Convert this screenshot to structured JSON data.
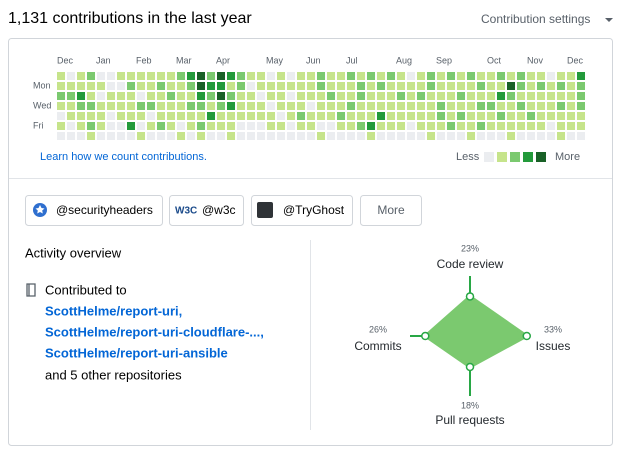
{
  "header": {
    "title": "1,131 contributions in the last year",
    "settings": "Contribution settings"
  },
  "contributions": {
    "months": [
      "Dec",
      "Jan",
      "Feb",
      "Mar",
      "Apr",
      "May",
      "Jun",
      "Jul",
      "Aug",
      "Sep",
      "Oct",
      "Nov",
      "Dec"
    ],
    "days": [
      "Mon",
      "Wed",
      "Fri"
    ],
    "level_colors": [
      "#ebedf0",
      "#c6e48b",
      "#7bc96f",
      "#239a3b",
      "#196127"
    ],
    "weeks": [
      [
        1,
        1,
        2,
        1,
        0,
        1,
        0
      ],
      [
        0,
        1,
        2,
        1,
        1,
        0,
        0
      ],
      [
        1,
        1,
        3,
        2,
        1,
        1,
        0
      ],
      [
        2,
        1,
        1,
        2,
        1,
        2,
        1
      ],
      [
        0,
        1,
        0,
        1,
        1,
        1,
        0
      ],
      [
        0,
        0,
        1,
        1,
        0,
        0,
        0
      ],
      [
        1,
        0,
        1,
        1,
        1,
        0,
        0
      ],
      [
        1,
        2,
        1,
        1,
        1,
        3,
        0
      ],
      [
        1,
        1,
        0,
        2,
        1,
        0,
        1
      ],
      [
        1,
        1,
        1,
        2,
        0,
        1,
        0
      ],
      [
        1,
        2,
        1,
        1,
        1,
        2,
        0
      ],
      [
        1,
        1,
        2,
        1,
        1,
        1,
        0
      ],
      [
        2,
        1,
        1,
        1,
        1,
        0,
        1
      ],
      [
        3,
        2,
        1,
        2,
        1,
        1,
        0
      ],
      [
        4,
        4,
        3,
        2,
        1,
        2,
        1
      ],
      [
        2,
        3,
        2,
        1,
        3,
        1,
        0
      ],
      [
        4,
        3,
        4,
        2,
        1,
        1,
        0
      ],
      [
        3,
        1,
        2,
        3,
        1,
        1,
        1
      ],
      [
        2,
        2,
        1,
        1,
        1,
        0,
        0
      ],
      [
        1,
        0,
        1,
        1,
        1,
        0,
        0
      ],
      [
        1,
        1,
        0,
        1,
        1,
        0,
        0
      ],
      [
        0,
        1,
        1,
        0,
        1,
        1,
        0
      ],
      [
        1,
        1,
        1,
        1,
        0,
        1,
        0
      ],
      [
        0,
        1,
        0,
        1,
        1,
        0,
        0
      ],
      [
        1,
        1,
        1,
        1,
        2,
        1,
        0
      ],
      [
        1,
        1,
        1,
        0,
        1,
        1,
        0
      ],
      [
        2,
        2,
        1,
        1,
        1,
        0,
        1
      ],
      [
        1,
        1,
        2,
        1,
        1,
        0,
        0
      ],
      [
        1,
        1,
        1,
        1,
        2,
        1,
        0
      ],
      [
        2,
        1,
        1,
        2,
        1,
        1,
        0
      ],
      [
        1,
        2,
        2,
        1,
        1,
        2,
        0
      ],
      [
        2,
        1,
        1,
        1,
        1,
        3,
        1
      ],
      [
        1,
        2,
        1,
        1,
        3,
        1,
        0
      ],
      [
        2,
        1,
        1,
        1,
        1,
        1,
        0
      ],
      [
        1,
        1,
        2,
        1,
        1,
        1,
        0
      ],
      [
        0,
        1,
        1,
        1,
        1,
        0,
        0
      ],
      [
        1,
        1,
        2,
        1,
        1,
        1,
        0
      ],
      [
        2,
        2,
        1,
        1,
        1,
        1,
        1
      ],
      [
        1,
        1,
        1,
        2,
        2,
        1,
        0
      ],
      [
        2,
        1,
        1,
        1,
        1,
        2,
        0
      ],
      [
        1,
        1,
        2,
        1,
        2,
        1,
        0
      ],
      [
        2,
        1,
        1,
        1,
        1,
        1,
        1
      ],
      [
        1,
        2,
        1,
        2,
        1,
        2,
        0
      ],
      [
        1,
        1,
        1,
        2,
        1,
        1,
        0
      ],
      [
        2,
        1,
        3,
        1,
        2,
        1,
        0
      ],
      [
        1,
        4,
        2,
        1,
        1,
        1,
        1
      ],
      [
        2,
        2,
        1,
        2,
        1,
        1,
        0
      ],
      [
        1,
        1,
        1,
        1,
        2,
        1,
        0
      ],
      [
        1,
        2,
        1,
        1,
        1,
        1,
        0
      ],
      [
        0,
        1,
        1,
        1,
        1,
        0,
        0
      ],
      [
        1,
        2,
        1,
        2,
        1,
        1,
        1
      ],
      [
        1,
        1,
        1,
        1,
        1,
        1,
        0
      ],
      [
        3,
        2,
        2,
        2,
        1,
        1,
        0
      ]
    ],
    "learn_link": "Learn how we count contributions.",
    "less": "Less",
    "more": "More"
  },
  "organizations": {
    "items": [
      "@securityheaders",
      "@w3c",
      "@TryGhost"
    ],
    "more": "More"
  },
  "activity": {
    "title": "Activity overview",
    "contributed_to": "Contributed to",
    "repositories": [
      "ScottHelme/report-uri,",
      "ScottHelme/report-uri-cloudflare-...,",
      "ScottHelme/report-uri-ansible"
    ],
    "others": "and 5 other repositories",
    "radar": {
      "axes": [
        "Code review",
        "Issues",
        "Pull requests",
        "Commits"
      ],
      "values": [
        23,
        33,
        18,
        26
      ],
      "value_labels": [
        "23%",
        "33%",
        "18%",
        "26%"
      ]
    }
  }
}
